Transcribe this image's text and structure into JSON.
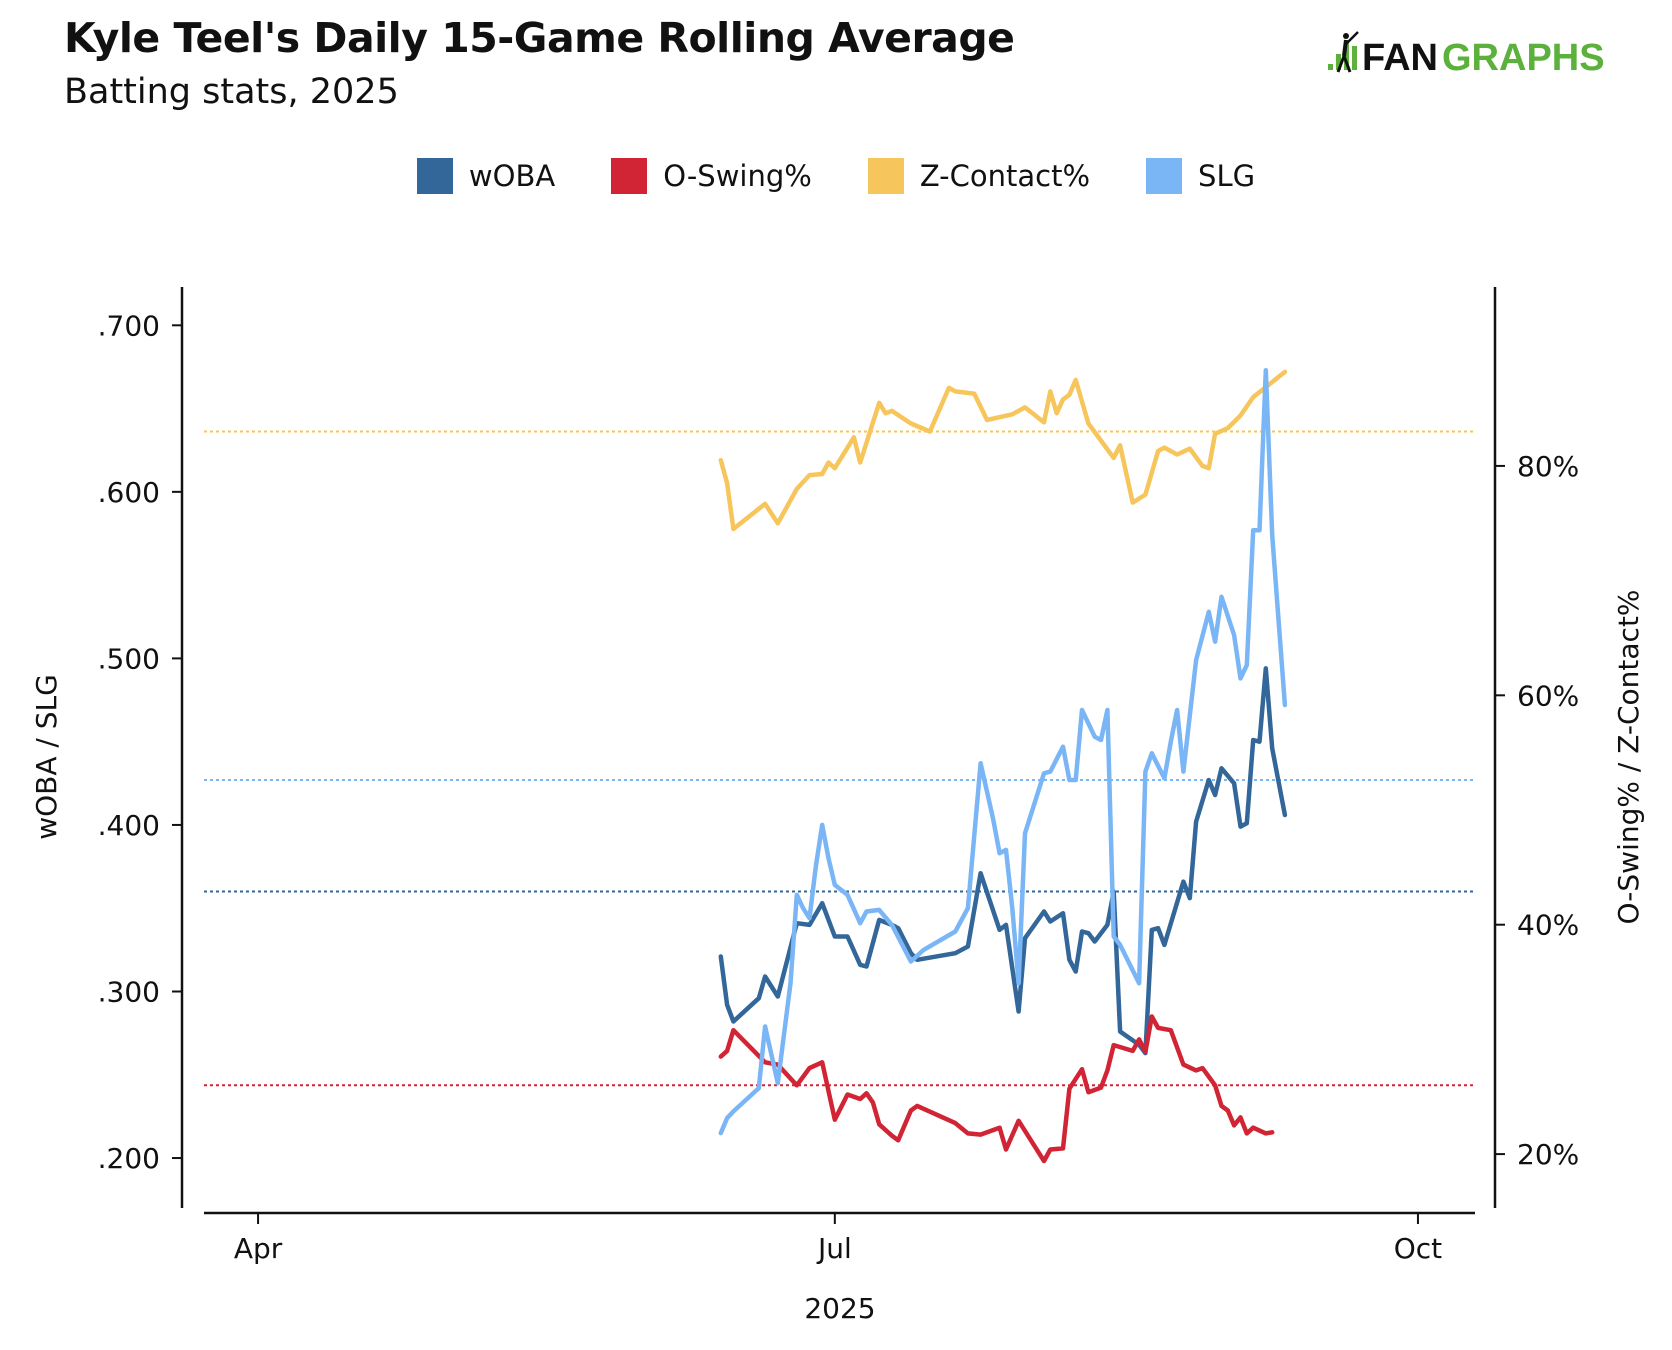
{
  "header": {
    "title": "Kyle Teel's Daily 15-Game Rolling Average",
    "subtitle": "Batting stats, 2025",
    "logo_text_dark": "FAN",
    "logo_text_green": "GRAPHS"
  },
  "colors": {
    "woba": "#336699",
    "oswing": "#d12434",
    "zcontact": "#f6c55b",
    "slg": "#7ab6f5",
    "logo_green": "#5bb13b"
  },
  "chart_data": {
    "type": "line",
    "xlabel": "2025",
    "ylabel_left": "wOBA / SLG",
    "ylabel_right": "O-Swing% / Z-Contact%",
    "x_range": [
      "2025-03-20",
      "2025-10-10"
    ],
    "x_ticks": [
      {
        "date": "2025-04-01",
        "label": "Apr"
      },
      {
        "date": "2025-07-01",
        "label": "Jul"
      },
      {
        "date": "2025-10-01",
        "label": "Oct"
      }
    ],
    "ylim_left": [
      0.17,
      0.723
    ],
    "y_ticks_left": [
      {
        "value": 0.2,
        "label": ".200"
      },
      {
        "value": 0.3,
        "label": ".300"
      },
      {
        "value": 0.4,
        "label": ".400"
      },
      {
        "value": 0.5,
        "label": ".500"
      },
      {
        "value": 0.6,
        "label": ".600"
      },
      {
        "value": 0.7,
        "label": ".700"
      }
    ],
    "ylim_right": [
      15.3,
      95.6
    ],
    "y_ticks_right": [
      {
        "value": 20,
        "label": "20%"
      },
      {
        "value": 40,
        "label": "40%"
      },
      {
        "value": 60,
        "label": "60%"
      },
      {
        "value": 80,
        "label": "80%"
      }
    ],
    "reference_lines": [
      {
        "series": "wOBA",
        "axis": "left",
        "value": 0.36
      },
      {
        "series": "SLG",
        "axis": "left",
        "value": 0.427
      },
      {
        "series": "O-Swing%",
        "axis": "right",
        "value": 26.0
      },
      {
        "series": "Z-Contact%",
        "axis": "right",
        "value": 83.0
      }
    ],
    "legend_position": "top",
    "series": [
      {
        "name": "wOBA",
        "axis": "left",
        "color_key": "woba",
        "points": [
          [
            "2025-06-13",
            0.321
          ],
          [
            "2025-06-14",
            0.292
          ],
          [
            "2025-06-15",
            0.282
          ],
          [
            "2025-06-19",
            0.296
          ],
          [
            "2025-06-20",
            0.309
          ],
          [
            "2025-06-22",
            0.297
          ],
          [
            "2025-06-25",
            0.341
          ],
          [
            "2025-06-27",
            0.34
          ],
          [
            "2025-06-29",
            0.353
          ],
          [
            "2025-07-01",
            0.333
          ],
          [
            "2025-07-03",
            0.333
          ],
          [
            "2025-07-05",
            0.316
          ],
          [
            "2025-07-06",
            0.315
          ],
          [
            "2025-07-08",
            0.343
          ],
          [
            "2025-07-10",
            0.34
          ],
          [
            "2025-07-11",
            0.338
          ],
          [
            "2025-07-13",
            0.323
          ],
          [
            "2025-07-14",
            0.319
          ],
          [
            "2025-07-20",
            0.323
          ],
          [
            "2025-07-22",
            0.327
          ],
          [
            "2025-07-24",
            0.371
          ],
          [
            "2025-07-27",
            0.337
          ],
          [
            "2025-07-28",
            0.34
          ],
          [
            "2025-07-30",
            0.288
          ],
          [
            "2025-07-31",
            0.332
          ],
          [
            "2025-08-03",
            0.348
          ],
          [
            "2025-08-04",
            0.342
          ],
          [
            "2025-08-06",
            0.347
          ],
          [
            "2025-08-07",
            0.319
          ],
          [
            "2025-08-08",
            0.312
          ],
          [
            "2025-08-09",
            0.336
          ],
          [
            "2025-08-10",
            0.335
          ],
          [
            "2025-08-11",
            0.33
          ],
          [
            "2025-08-13",
            0.34
          ],
          [
            "2025-08-14",
            0.36
          ],
          [
            "2025-08-15",
            0.276
          ],
          [
            "2025-08-18",
            0.268
          ],
          [
            "2025-08-19",
            0.263
          ],
          [
            "2025-08-20",
            0.337
          ],
          [
            "2025-08-21",
            0.338
          ],
          [
            "2025-08-22",
            0.328
          ],
          [
            "2025-08-25",
            0.366
          ],
          [
            "2025-08-26",
            0.356
          ],
          [
            "2025-08-27",
            0.402
          ],
          [
            "2025-08-29",
            0.427
          ],
          [
            "2025-08-30",
            0.418
          ],
          [
            "2025-08-31",
            0.434
          ],
          [
            "2025-09-02",
            0.425
          ],
          [
            "2025-09-03",
            0.399
          ],
          [
            "2025-09-04",
            0.401
          ],
          [
            "2025-09-05",
            0.451
          ],
          [
            "2025-09-06",
            0.45
          ],
          [
            "2025-09-07",
            0.494
          ],
          [
            "2025-09-08",
            0.446
          ],
          [
            "2025-09-10",
            0.406
          ]
        ]
      },
      {
        "name": "O-Swing%",
        "axis": "right",
        "color_key": "oswing",
        "points": [
          [
            "2025-06-13",
            28.5
          ],
          [
            "2025-06-14",
            29.0
          ],
          [
            "2025-06-15",
            30.8
          ],
          [
            "2025-06-20",
            28.0
          ],
          [
            "2025-06-22",
            27.8
          ],
          [
            "2025-06-25",
            26.0
          ],
          [
            "2025-06-27",
            27.5
          ],
          [
            "2025-06-29",
            28.0
          ],
          [
            "2025-07-01",
            23.0
          ],
          [
            "2025-07-03",
            25.2
          ],
          [
            "2025-07-05",
            24.8
          ],
          [
            "2025-07-06",
            25.3
          ],
          [
            "2025-07-07",
            24.5
          ],
          [
            "2025-07-08",
            22.6
          ],
          [
            "2025-07-10",
            21.6
          ],
          [
            "2025-07-11",
            21.2
          ],
          [
            "2025-07-13",
            23.8
          ],
          [
            "2025-07-14",
            24.2
          ],
          [
            "2025-07-20",
            22.7
          ],
          [
            "2025-07-22",
            21.8
          ],
          [
            "2025-07-24",
            21.7
          ],
          [
            "2025-07-27",
            22.3
          ],
          [
            "2025-07-28",
            20.4
          ],
          [
            "2025-07-30",
            22.9
          ],
          [
            "2025-08-03",
            19.4
          ],
          [
            "2025-08-04",
            20.4
          ],
          [
            "2025-08-06",
            20.5
          ],
          [
            "2025-08-07",
            25.7
          ],
          [
            "2025-08-09",
            27.4
          ],
          [
            "2025-08-10",
            25.4
          ],
          [
            "2025-08-12",
            25.8
          ],
          [
            "2025-08-13",
            27.3
          ],
          [
            "2025-08-14",
            29.5
          ],
          [
            "2025-08-17",
            29.0
          ],
          [
            "2025-08-18",
            30.0
          ],
          [
            "2025-08-19",
            28.9
          ],
          [
            "2025-08-20",
            32.0
          ],
          [
            "2025-08-21",
            31.0
          ],
          [
            "2025-08-23",
            30.8
          ],
          [
            "2025-08-25",
            27.8
          ],
          [
            "2025-08-27",
            27.3
          ],
          [
            "2025-08-28",
            27.5
          ],
          [
            "2025-08-30",
            26.0
          ],
          [
            "2025-08-31",
            24.2
          ],
          [
            "2025-09-01",
            23.8
          ],
          [
            "2025-09-02",
            22.5
          ],
          [
            "2025-09-03",
            23.2
          ],
          [
            "2025-09-04",
            21.8
          ],
          [
            "2025-09-05",
            22.3
          ],
          [
            "2025-09-07",
            21.8
          ],
          [
            "2025-09-08",
            21.9
          ]
        ]
      },
      {
        "name": "Z-Contact%",
        "axis": "right",
        "color_key": "zcontact",
        "points": [
          [
            "2025-06-13",
            80.5
          ],
          [
            "2025-06-14",
            78.5
          ],
          [
            "2025-06-15",
            74.5
          ],
          [
            "2025-06-20",
            76.7
          ],
          [
            "2025-06-22",
            75.0
          ],
          [
            "2025-06-25",
            78.0
          ],
          [
            "2025-06-27",
            79.2
          ],
          [
            "2025-06-29",
            79.3
          ],
          [
            "2025-06-30",
            80.3
          ],
          [
            "2025-07-01",
            79.8
          ],
          [
            "2025-07-04",
            82.5
          ],
          [
            "2025-07-05",
            80.3
          ],
          [
            "2025-07-08",
            85.5
          ],
          [
            "2025-07-09",
            84.6
          ],
          [
            "2025-07-10",
            84.8
          ],
          [
            "2025-07-13",
            83.7
          ],
          [
            "2025-07-16",
            83.0
          ],
          [
            "2025-07-19",
            86.8
          ],
          [
            "2025-07-20",
            86.5
          ],
          [
            "2025-07-23",
            86.3
          ],
          [
            "2025-07-25",
            84.0
          ],
          [
            "2025-07-29",
            84.5
          ],
          [
            "2025-07-31",
            85.1
          ],
          [
            "2025-08-03",
            83.8
          ],
          [
            "2025-08-04",
            86.5
          ],
          [
            "2025-08-05",
            84.6
          ],
          [
            "2025-08-06",
            85.8
          ],
          [
            "2025-08-07",
            86.2
          ],
          [
            "2025-08-08",
            87.5
          ],
          [
            "2025-08-10",
            83.7
          ],
          [
            "2025-08-14",
            80.7
          ],
          [
            "2025-08-15",
            81.8
          ],
          [
            "2025-08-17",
            76.8
          ],
          [
            "2025-08-19",
            77.5
          ],
          [
            "2025-08-21",
            81.3
          ],
          [
            "2025-08-22",
            81.6
          ],
          [
            "2025-08-24",
            81.0
          ],
          [
            "2025-08-26",
            81.5
          ],
          [
            "2025-08-28",
            80.0
          ],
          [
            "2025-08-29",
            79.8
          ],
          [
            "2025-08-30",
            82.8
          ],
          [
            "2025-09-01",
            83.3
          ],
          [
            "2025-09-03",
            84.4
          ],
          [
            "2025-09-05",
            86.0
          ],
          [
            "2025-09-10",
            88.2
          ]
        ]
      },
      {
        "name": "SLG",
        "axis": "left",
        "color_key": "slg",
        "points": [
          [
            "2025-06-13",
            0.215
          ],
          [
            "2025-06-14",
            0.224
          ],
          [
            "2025-06-15",
            0.228
          ],
          [
            "2025-06-19",
            0.242
          ],
          [
            "2025-06-20",
            0.279
          ],
          [
            "2025-06-22",
            0.245
          ],
          [
            "2025-06-24",
            0.305
          ],
          [
            "2025-06-25",
            0.358
          ],
          [
            "2025-06-26",
            0.35
          ],
          [
            "2025-06-27",
            0.344
          ],
          [
            "2025-06-28",
            0.375
          ],
          [
            "2025-06-29",
            0.4
          ],
          [
            "2025-06-30",
            0.38
          ],
          [
            "2025-07-01",
            0.364
          ],
          [
            "2025-07-03",
            0.358
          ],
          [
            "2025-07-05",
            0.341
          ],
          [
            "2025-07-06",
            0.348
          ],
          [
            "2025-07-08",
            0.349
          ],
          [
            "2025-07-10",
            0.34
          ],
          [
            "2025-07-13",
            0.318
          ],
          [
            "2025-07-15",
            0.325
          ],
          [
            "2025-07-20",
            0.336
          ],
          [
            "2025-07-22",
            0.35
          ],
          [
            "2025-07-24",
            0.437
          ],
          [
            "2025-07-25",
            0.42
          ],
          [
            "2025-07-26",
            0.403
          ],
          [
            "2025-07-27",
            0.383
          ],
          [
            "2025-07-28",
            0.385
          ],
          [
            "2025-07-29",
            0.35
          ],
          [
            "2025-07-30",
            0.305
          ],
          [
            "2025-07-31",
            0.395
          ],
          [
            "2025-08-03",
            0.431
          ],
          [
            "2025-08-04",
            0.432
          ],
          [
            "2025-08-06",
            0.447
          ],
          [
            "2025-08-07",
            0.427
          ],
          [
            "2025-08-08",
            0.427
          ],
          [
            "2025-08-09",
            0.469
          ],
          [
            "2025-08-11",
            0.453
          ],
          [
            "2025-08-12",
            0.451
          ],
          [
            "2025-08-13",
            0.469
          ],
          [
            "2025-08-14",
            0.333
          ],
          [
            "2025-08-15",
            0.328
          ],
          [
            "2025-08-18",
            0.305
          ],
          [
            "2025-08-19",
            0.432
          ],
          [
            "2025-08-20",
            0.443
          ],
          [
            "2025-08-22",
            0.428
          ],
          [
            "2025-08-23",
            0.45
          ],
          [
            "2025-08-24",
            0.469
          ],
          [
            "2025-08-25",
            0.432
          ],
          [
            "2025-08-27",
            0.499
          ],
          [
            "2025-08-29",
            0.528
          ],
          [
            "2025-08-30",
            0.51
          ],
          [
            "2025-08-31",
            0.537
          ],
          [
            "2025-09-02",
            0.514
          ],
          [
            "2025-09-03",
            0.488
          ],
          [
            "2025-09-04",
            0.496
          ],
          [
            "2025-09-05",
            0.577
          ],
          [
            "2025-09-06",
            0.577
          ],
          [
            "2025-09-07",
            0.673
          ],
          [
            "2025-09-08",
            0.574
          ],
          [
            "2025-09-10",
            0.472
          ]
        ]
      }
    ]
  }
}
